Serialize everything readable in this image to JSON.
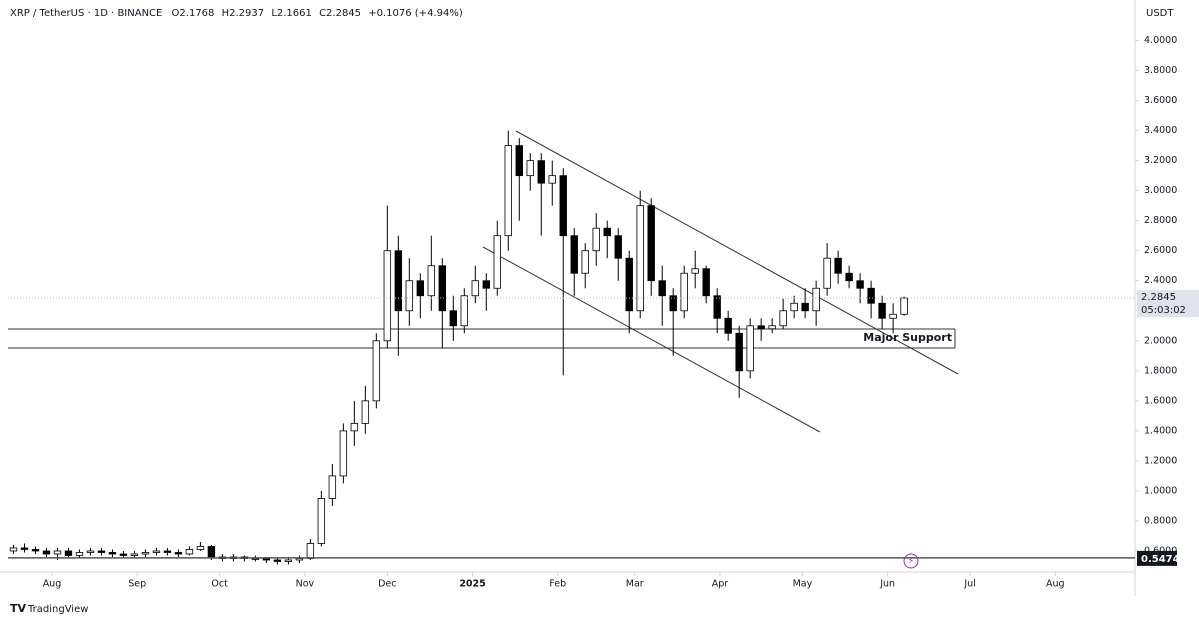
{
  "chart_data": {
    "type": "candlestick",
    "symbol": "XRP / TetherUS · 1D · BINANCE",
    "ohlc_text": [
      "O2.1768",
      "H2.2937",
      "L2.1661",
      "C2.2845"
    ],
    "change_text": "+0.1076 (+4.94%)",
    "currency": "USDT",
    "annotation": "Major Support",
    "brand": "TradingView",
    "last_price": 2.2845,
    "countdown": "05:03:02",
    "level": 0.5474,
    "up_color": "#ffffff",
    "down_color": "#000000",
    "xlim": [
      0,
      102.5
    ],
    "xticks": [
      {
        "value": 4,
        "label": "Aug"
      },
      {
        "value": 11.75,
        "label": "Sep"
      },
      {
        "value": 19.25,
        "label": "Oct"
      },
      {
        "value": 27,
        "label": "Nov"
      },
      {
        "value": 34.5,
        "label": "Dec"
      },
      {
        "value": 42.25,
        "label": "2025"
      },
      {
        "value": 50,
        "label": "Feb"
      },
      {
        "value": 57,
        "label": "Mar"
      },
      {
        "value": 64.75,
        "label": "Apr"
      },
      {
        "value": 72.25,
        "label": "May"
      },
      {
        "value": 80,
        "label": "Jun"
      },
      {
        "value": 87.5,
        "label": "Jul"
      },
      {
        "value": 95.25,
        "label": "Aug"
      }
    ],
    "ylim": [
      0.46,
      4.27
    ],
    "yticks": [
      {
        "value": 0.6,
        "label": "0.6000"
      },
      {
        "value": 0.8,
        "label": "0.8000"
      },
      {
        "value": 1.0,
        "label": "1.0000"
      },
      {
        "value": 1.2,
        "label": "1.2000"
      },
      {
        "value": 1.4,
        "label": "1.4000"
      },
      {
        "value": 1.6,
        "label": "1.6000"
      },
      {
        "value": 1.8,
        "label": "1.8000"
      },
      {
        "value": 2.0,
        "label": "2.0000"
      },
      {
        "value": 2.2,
        "label": "2.2000"
      },
      {
        "value": 2.4,
        "label": "2.4000"
      },
      {
        "value": 2.6,
        "label": "2.6000"
      },
      {
        "value": 2.8,
        "label": "2.8000"
      },
      {
        "value": 3.0,
        "label": "3.0000"
      },
      {
        "value": 3.2,
        "label": "3.2000"
      },
      {
        "value": 3.4,
        "label": "3.4000"
      },
      {
        "value": 3.6,
        "label": "3.6000"
      },
      {
        "value": 3.8,
        "label": "3.8000"
      },
      {
        "value": 4.0,
        "label": "4.0000"
      }
    ],
    "open": [
      0.6,
      0.62,
      0.61,
      0.6,
      0.58,
      0.6,
      0.57,
      0.59,
      0.6,
      0.59,
      0.58,
      0.57,
      0.58,
      0.59,
      0.6,
      0.59,
      0.58,
      0.61,
      0.63,
      0.56,
      0.55,
      0.56,
      0.55,
      0.55,
      0.54,
      0.53,
      0.54,
      0.55,
      0.65,
      0.95,
      1.1,
      1.4,
      1.45,
      1.6,
      2.0,
      2.6,
      2.2,
      2.4,
      2.3,
      2.5,
      2.2,
      2.1,
      2.3,
      2.4,
      2.35,
      2.7,
      3.3,
      3.1,
      3.2,
      3.05,
      3.1,
      2.7,
      2.45,
      2.6,
      2.75,
      2.7,
      2.55,
      2.2,
      2.9,
      2.4,
      2.3,
      2.2,
      2.45,
      2.48,
      2.3,
      2.15,
      2.05,
      1.8,
      2.1,
      2.08,
      2.1,
      2.2,
      2.25,
      2.2,
      2.35,
      2.55,
      2.45,
      2.4,
      2.35,
      2.25,
      2.15,
      2.1768
    ],
    "high": [
      0.64,
      0.65,
      0.63,
      0.62,
      0.62,
      0.62,
      0.61,
      0.62,
      0.62,
      0.61,
      0.6,
      0.6,
      0.61,
      0.62,
      0.62,
      0.61,
      0.63,
      0.66,
      0.64,
      0.58,
      0.58,
      0.57,
      0.57,
      0.56,
      0.56,
      0.56,
      0.57,
      0.68,
      1.0,
      1.18,
      1.45,
      1.6,
      1.7,
      2.05,
      2.9,
      2.7,
      2.55,
      2.45,
      2.7,
      2.55,
      2.3,
      2.35,
      2.5,
      2.45,
      2.8,
      3.4,
      3.35,
      3.25,
      3.25,
      3.2,
      3.15,
      2.75,
      2.65,
      2.85,
      2.8,
      2.75,
      2.6,
      3.0,
      2.95,
      2.5,
      2.35,
      2.5,
      2.6,
      2.5,
      2.35,
      2.2,
      2.1,
      2.15,
      2.15,
      2.15,
      2.28,
      2.3,
      2.35,
      2.4,
      2.65,
      2.6,
      2.5,
      2.45,
      2.4,
      2.3,
      2.25,
      2.2937
    ],
    "low": [
      0.58,
      0.59,
      0.58,
      0.56,
      0.54,
      0.55,
      0.55,
      0.57,
      0.57,
      0.56,
      0.55,
      0.55,
      0.56,
      0.57,
      0.57,
      0.56,
      0.57,
      0.6,
      0.54,
      0.53,
      0.53,
      0.53,
      0.53,
      0.52,
      0.51,
      0.51,
      0.52,
      0.54,
      0.63,
      0.9,
      1.05,
      1.3,
      1.38,
      1.55,
      1.95,
      1.9,
      2.1,
      2.15,
      2.2,
      1.95,
      2.0,
      2.05,
      2.25,
      2.2,
      2.3,
      2.6,
      2.8,
      3.0,
      2.7,
      2.9,
      1.77,
      2.3,
      2.35,
      2.5,
      2.55,
      2.4,
      2.05,
      2.15,
      2.3,
      2.1,
      1.9,
      2.15,
      2.35,
      2.25,
      2.05,
      2.0,
      1.62,
      1.75,
      2.0,
      2.05,
      2.08,
      2.15,
      2.15,
      2.1,
      2.3,
      2.38,
      2.35,
      2.25,
      2.15,
      2.08,
      2.05,
      2.1661
    ],
    "close": [
      0.62,
      0.61,
      0.6,
      0.58,
      0.6,
      0.57,
      0.59,
      0.6,
      0.59,
      0.58,
      0.57,
      0.58,
      0.59,
      0.6,
      0.59,
      0.58,
      0.61,
      0.63,
      0.56,
      0.55,
      0.56,
      0.55,
      0.55,
      0.54,
      0.53,
      0.54,
      0.55,
      0.65,
      0.95,
      1.1,
      1.4,
      1.45,
      1.6,
      2.0,
      2.6,
      2.2,
      2.4,
      2.3,
      2.5,
      2.2,
      2.1,
      2.3,
      2.4,
      2.35,
      2.7,
      3.3,
      3.1,
      3.2,
      3.05,
      3.1,
      2.7,
      2.45,
      2.6,
      2.75,
      2.7,
      2.55,
      2.2,
      2.9,
      2.4,
      2.3,
      2.2,
      2.45,
      2.48,
      2.3,
      2.15,
      2.05,
      1.8,
      2.1,
      2.08,
      2.1,
      2.2,
      2.25,
      2.2,
      2.35,
      2.55,
      2.45,
      2.4,
      2.35,
      2.25,
      2.15,
      2.1768,
      2.2845
    ]
  }
}
